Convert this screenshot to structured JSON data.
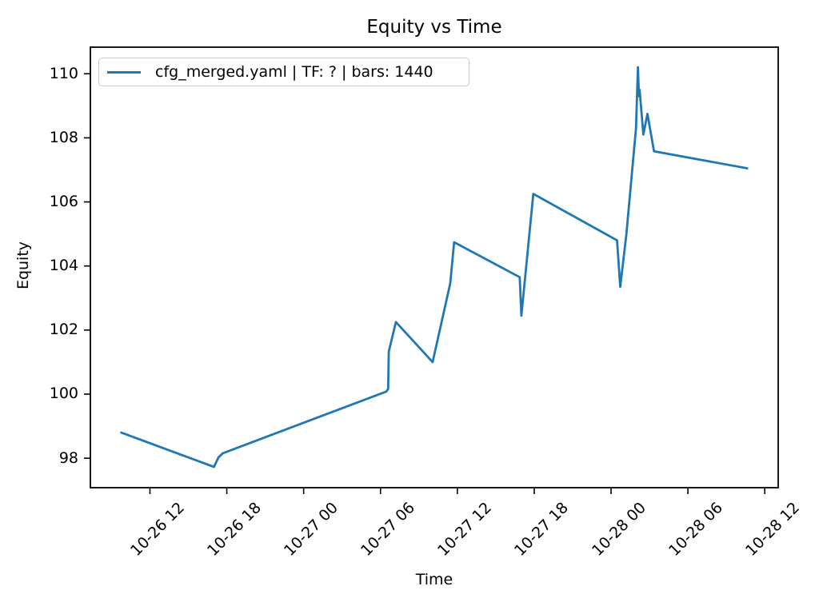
{
  "chart_data": {
    "type": "line",
    "title": "Equity vs Time",
    "xlabel": "Time",
    "ylabel": "Equity",
    "legend_position": "upper left",
    "grid": false,
    "x_unit": "hours since 10-26 00:00",
    "xlim": [
      7.35,
      61.05
    ],
    "ylim": [
      97.08,
      110.83
    ],
    "x_ticks": [
      {
        "t": 12,
        "label": "10-26 12"
      },
      {
        "t": 18,
        "label": "10-26 18"
      },
      {
        "t": 24,
        "label": "10-27 00"
      },
      {
        "t": 30,
        "label": "10-27 06"
      },
      {
        "t": 36,
        "label": "10-27 12"
      },
      {
        "t": 42,
        "label": "10-27 18"
      },
      {
        "t": 48,
        "label": "10-28 00"
      },
      {
        "t": 54,
        "label": "10-28 06"
      },
      {
        "t": 60,
        "label": "10-28 12"
      }
    ],
    "x_tick_rotation_deg": 45,
    "y_ticks": [
      98,
      100,
      102,
      104,
      106,
      108,
      110
    ],
    "series": [
      {
        "name": "cfg_merged.yaml | TF: ? | bars: 1440",
        "color": "#1f77b4",
        "points": [
          [
            9.76,
            98.8
          ],
          [
            17.0,
            97.73
          ],
          [
            17.35,
            98.02
          ],
          [
            17.67,
            98.15
          ],
          [
            30.45,
            100.08
          ],
          [
            30.6,
            100.16
          ],
          [
            30.65,
            101.33
          ],
          [
            31.2,
            102.25
          ],
          [
            34.07,
            101.0
          ],
          [
            35.44,
            103.45
          ],
          [
            35.75,
            104.74
          ],
          [
            40.87,
            103.65
          ],
          [
            41.0,
            102.45
          ],
          [
            41.93,
            106.25
          ],
          [
            48.47,
            104.8
          ],
          [
            48.72,
            103.35
          ],
          [
            49.2,
            105.0
          ],
          [
            49.95,
            108.3
          ],
          [
            50.1,
            110.2
          ],
          [
            50.18,
            109.3
          ],
          [
            50.23,
            109.5
          ],
          [
            50.52,
            108.1
          ],
          [
            50.84,
            108.75
          ],
          [
            51.35,
            107.58
          ],
          [
            58.63,
            107.05
          ]
        ]
      }
    ]
  }
}
